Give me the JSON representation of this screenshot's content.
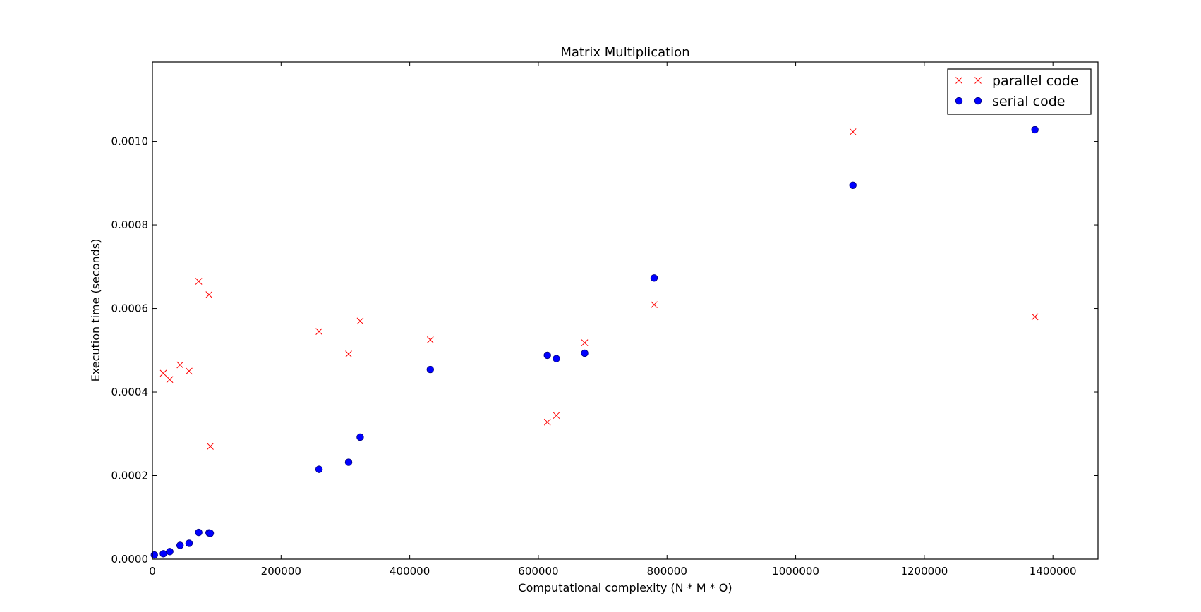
{
  "chart_data": {
    "type": "scatter",
    "title": "Matrix Multiplication",
    "xlabel": "Computational complexity (N * M * O)",
    "ylabel": "Execution time (seconds)",
    "xlim": [
      0,
      1470000
    ],
    "ylim": [
      0,
      0.00119
    ],
    "xticks": [
      0,
      200000,
      400000,
      600000,
      800000,
      1000000,
      1200000,
      1400000
    ],
    "xtick_labels": [
      "0",
      "200000",
      "400000",
      "600000",
      "800000",
      "1000000",
      "1200000",
      "1400000"
    ],
    "yticks": [
      0,
      0.0002,
      0.0004,
      0.0006,
      0.0008,
      0.001
    ],
    "ytick_labels": [
      "0.0000",
      "0.0002",
      "0.0004",
      "0.0006",
      "0.0008",
      "0.0010"
    ],
    "grid": false,
    "legend_position": "top-right",
    "series": [
      {
        "name": "parallel code",
        "marker": "x",
        "color": "#ff0000",
        "points": [
          [
            17000,
            0.000445
          ],
          [
            27000,
            0.00043
          ],
          [
            43000,
            0.000465
          ],
          [
            57000,
            0.00045
          ],
          [
            72000,
            0.000665
          ],
          [
            88000,
            0.000633
          ],
          [
            90000,
            0.00027
          ],
          [
            259000,
            0.000545
          ],
          [
            305000,
            0.000491
          ],
          [
            323000,
            0.00057
          ],
          [
            432000,
            0.000525
          ],
          [
            614000,
            0.000328
          ],
          [
            628000,
            0.000344
          ],
          [
            672000,
            0.000518
          ],
          [
            780000,
            0.000609
          ],
          [
            1089000,
            0.001023
          ],
          [
            1372000,
            0.00058
          ]
        ]
      },
      {
        "name": "serial code",
        "marker": "o",
        "color": "#0000ff",
        "points": [
          [
            3000,
            1e-05
          ],
          [
            17000,
            1.3e-05
          ],
          [
            27000,
            1.8e-05
          ],
          [
            43000,
            3.3e-05
          ],
          [
            57000,
            3.8e-05
          ],
          [
            72000,
            6.4e-05
          ],
          [
            88000,
            6.3e-05
          ],
          [
            90000,
            6.2e-05
          ],
          [
            259000,
            0.000215
          ],
          [
            305000,
            0.000232
          ],
          [
            323000,
            0.000292
          ],
          [
            432000,
            0.000454
          ],
          [
            614000,
            0.000488
          ],
          [
            628000,
            0.00048
          ],
          [
            672000,
            0.000493
          ],
          [
            780000,
            0.000673
          ],
          [
            1089000,
            0.000895
          ],
          [
            1372000,
            0.001028
          ]
        ]
      }
    ]
  }
}
